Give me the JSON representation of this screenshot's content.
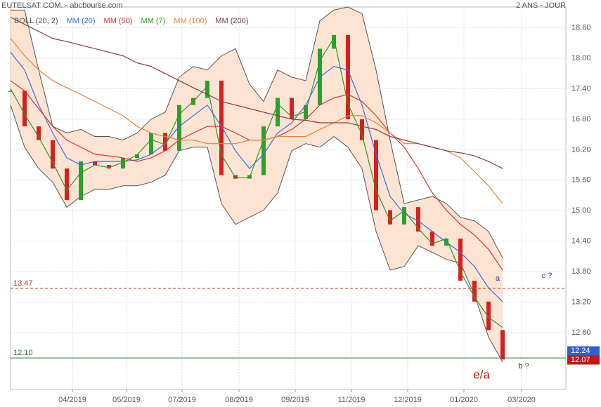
{
  "header": {
    "left": "EUTELSAT COM. - abcbourse.com",
    "right": "2 ANS - JOUR"
  },
  "chart_data": {
    "type": "candle-close",
    "x": [
      0,
      4,
      8,
      12,
      16,
      20,
      24,
      28,
      32,
      36,
      40,
      44,
      48,
      52,
      56,
      60,
      64,
      68,
      72,
      76,
      80,
      84,
      88,
      92,
      96,
      100,
      104,
      108,
      112,
      116,
      120,
      124,
      128,
      132,
      136,
      140
    ],
    "values": [
      17.36,
      16.66,
      16.39,
      15.83,
      15.21,
      15.97,
      15.9,
      15.83,
      16.04,
      16.11,
      16.53,
      16.18,
      17.08,
      17.22,
      17.56,
      15.7,
      15.63,
      15.7,
      16.66,
      17.22,
      16.8,
      17.08,
      18.19,
      18.46,
      16.8,
      16.39,
      15.01,
      14.73,
      15.07,
      14.59,
      14.31,
      14.45,
      13.62,
      13.21,
      12.65,
      12.07
    ],
    "up_color": "#2ca02c",
    "down_color": "#d62020",
    "bollinger": {
      "name": "BOLL (20, 2)",
      "color": "#555555",
      "fill": "#fde3d2",
      "upper": [
        18.95,
        18.95,
        17.77,
        16.66,
        16.53,
        16.6,
        16.46,
        16.46,
        16.39,
        16.53,
        16.8,
        16.94,
        17.63,
        17.84,
        17.77,
        18.05,
        18.19,
        17.49,
        17.15,
        17.77,
        17.63,
        17.56,
        18.74,
        18.95,
        19.01,
        18.88,
        17.77,
        16.39,
        15.14,
        15.21,
        15.28,
        15.14,
        14.87,
        14.8,
        14.59,
        14.07
      ],
      "lower": [
        17.08,
        16.25,
        15.83,
        15.56,
        15.07,
        15.28,
        15.42,
        15.42,
        15.49,
        15.49,
        15.56,
        15.7,
        16.18,
        16.25,
        16.25,
        15.14,
        14.73,
        14.87,
        15.01,
        15.35,
        16.18,
        16.32,
        16.25,
        16.46,
        16.25,
        15.83,
        14.59,
        13.83,
        13.9,
        14.31,
        14.18,
        14.04,
        13.97,
        13.34,
        12.51,
        12.02
      ]
    },
    "series": [
      {
        "name": "MM (20)",
        "color": "#3a6fe0",
        "values": [
          18.12,
          17.77,
          17.08,
          16.53,
          16.04,
          15.9,
          15.97,
          15.97,
          15.97,
          16.0,
          16.11,
          16.32,
          16.66,
          16.87,
          17.08,
          16.66,
          16.18,
          15.83,
          16.11,
          16.53,
          16.73,
          17.08,
          17.63,
          17.84,
          17.77,
          17.08,
          16.11,
          15.28,
          14.94,
          14.8,
          14.59,
          14.38,
          14.18,
          13.9,
          13.48,
          13.21
        ]
      },
      {
        "name": "MM (50)",
        "color": "#e03030",
        "values": [
          17.56,
          17.36,
          17.01,
          16.66,
          16.39,
          16.25,
          16.11,
          16.08,
          16.04,
          15.97,
          16.04,
          16.18,
          16.39,
          16.53,
          16.66,
          16.66,
          16.53,
          16.39,
          16.39,
          16.46,
          16.6,
          16.8,
          17.08,
          17.22,
          17.29,
          17.15,
          16.87,
          16.53,
          16.25,
          15.83,
          15.35,
          15.01,
          14.73,
          14.52,
          14.24,
          13.83
        ]
      },
      {
        "name": "MM (7)",
        "color": "#2a9a2a",
        "values": [
          17.4,
          16.9,
          16.45,
          15.95,
          15.4,
          15.75,
          15.9,
          15.85,
          15.95,
          16.1,
          16.4,
          16.3,
          16.9,
          17.15,
          17.45,
          16.1,
          15.65,
          15.65,
          16.4,
          17.1,
          16.85,
          16.95,
          17.95,
          18.4,
          17.1,
          16.5,
          15.4,
          14.8,
          15.0,
          14.65,
          14.35,
          14.45,
          13.8,
          13.3,
          12.9,
          12.7
        ]
      },
      {
        "name": "MM (100)",
        "color": "#f08030",
        "values": [
          18.39,
          18.05,
          17.77,
          17.56,
          17.42,
          17.29,
          17.15,
          17.01,
          16.87,
          16.66,
          16.53,
          16.46,
          16.39,
          16.39,
          16.32,
          16.32,
          16.32,
          16.39,
          16.39,
          16.46,
          16.46,
          16.46,
          16.6,
          16.73,
          16.87,
          16.87,
          16.73,
          16.53,
          16.32,
          16.32,
          16.25,
          16.18,
          16.04,
          15.77,
          15.49,
          15.14
        ]
      },
      {
        "name": "MM (200)",
        "color": "#8b3a3a",
        "values": [
          18.81,
          18.67,
          18.53,
          18.39,
          18.33,
          18.26,
          18.19,
          18.12,
          18.05,
          17.91,
          17.84,
          17.7,
          17.56,
          17.42,
          17.29,
          17.15,
          17.08,
          17.01,
          16.94,
          16.87,
          16.8,
          16.78,
          16.73,
          16.73,
          16.73,
          16.66,
          16.6,
          16.46,
          16.39,
          16.32,
          16.25,
          16.18,
          16.14,
          16.08,
          15.97,
          15.83
        ]
      }
    ],
    "levels": [
      {
        "value": 13.47,
        "color": "#c03030",
        "style": "dashed"
      },
      {
        "value": 12.1,
        "label": "12.10",
        "color": "#2a7a2a",
        "style": "solid"
      }
    ],
    "price_tags": [
      {
        "value": 12.24,
        "color": "#2f5fd0"
      },
      {
        "value": 12.07,
        "color": "#c01818"
      }
    ],
    "annotations": [
      {
        "text": "a",
        "color": "#333399"
      },
      {
        "text": "c ?",
        "color": "#333399"
      },
      {
        "text": "b ?",
        "color": "#333333"
      },
      {
        "text": "e/a",
        "color": "#c01818"
      }
    ],
    "xlim": [
      0,
      158
    ],
    "ylim": [
      11.48,
      19.01
    ],
    "xticks": [
      {
        "value": 17.6,
        "label": "04/2019"
      },
      {
        "value": 33,
        "label": "05/2019"
      },
      {
        "value": 48.8,
        "label": "07/2019"
      },
      {
        "value": 65,
        "label": "08/2019"
      },
      {
        "value": 81,
        "label": "09/2019"
      },
      {
        "value": 97,
        "label": "11/2019"
      },
      {
        "value": 113,
        "label": "12/2019"
      },
      {
        "value": 129,
        "label": "01/2020"
      },
      {
        "value": 145.4,
        "label": "03/2020"
      }
    ],
    "yticks": [
      {
        "value": 12.6,
        "label": "12.60"
      },
      {
        "value": 13.2,
        "label": "13.20"
      },
      {
        "value": 13.8,
        "label": "13.80"
      },
      {
        "value": 14.4,
        "label": "14.40"
      },
      {
        "value": 15,
        "label": "15.00"
      },
      {
        "value": 15.6,
        "label": "15.60"
      },
      {
        "value": 16.2,
        "label": "16.20"
      },
      {
        "value": 16.8,
        "label": "16.80"
      },
      {
        "value": 17.4,
        "label": "17.40"
      },
      {
        "value": 18,
        "label": "18.00"
      },
      {
        "value": 18.6,
        "label": "18.60"
      }
    ],
    "grid": true
  }
}
